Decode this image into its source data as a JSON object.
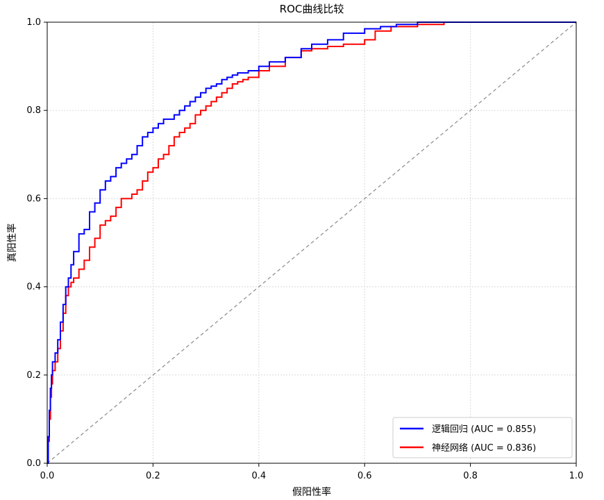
{
  "chart_data": {
    "type": "line",
    "title": "ROC曲线比较",
    "xlabel": "假阳性率",
    "ylabel": "真阳性率",
    "xlim": [
      0.0,
      1.0
    ],
    "ylim": [
      0.0,
      1.0
    ],
    "xticks": [
      "0.0",
      "0.2",
      "0.4",
      "0.6",
      "0.8",
      "1.0"
    ],
    "yticks": [
      "0.0",
      "0.2",
      "0.4",
      "0.6",
      "0.8",
      "1.0"
    ],
    "grid": true,
    "legend_position": "lower-right",
    "series": [
      {
        "name": "逻辑回归 (AUC = 0.855)",
        "color": "#0000ff",
        "x": [
          0.0,
          0.002,
          0.004,
          0.006,
          0.008,
          0.01,
          0.015,
          0.02,
          0.025,
          0.03,
          0.035,
          0.04,
          0.045,
          0.05,
          0.06,
          0.07,
          0.08,
          0.09,
          0.1,
          0.11,
          0.12,
          0.13,
          0.14,
          0.15,
          0.16,
          0.17,
          0.18,
          0.19,
          0.2,
          0.21,
          0.22,
          0.23,
          0.24,
          0.25,
          0.26,
          0.27,
          0.28,
          0.29,
          0.3,
          0.31,
          0.32,
          0.33,
          0.34,
          0.35,
          0.36,
          0.37,
          0.38,
          0.4,
          0.42,
          0.45,
          0.48,
          0.5,
          0.53,
          0.56,
          0.6,
          0.63,
          0.66,
          0.7,
          0.75,
          0.8,
          0.85,
          0.9,
          1.0
        ],
        "y": [
          0.0,
          0.06,
          0.12,
          0.17,
          0.2,
          0.23,
          0.25,
          0.28,
          0.32,
          0.36,
          0.4,
          0.42,
          0.45,
          0.48,
          0.52,
          0.53,
          0.57,
          0.59,
          0.62,
          0.64,
          0.65,
          0.67,
          0.68,
          0.69,
          0.7,
          0.72,
          0.74,
          0.75,
          0.76,
          0.77,
          0.78,
          0.78,
          0.79,
          0.8,
          0.81,
          0.82,
          0.83,
          0.84,
          0.85,
          0.855,
          0.86,
          0.87,
          0.875,
          0.88,
          0.885,
          0.885,
          0.89,
          0.9,
          0.91,
          0.92,
          0.94,
          0.95,
          0.96,
          0.975,
          0.985,
          0.99,
          0.995,
          1.0,
          1.0,
          1.0,
          1.0,
          1.0,
          1.0
        ]
      },
      {
        "name": "神经网络 (AUC = 0.836)",
        "color": "#ff0000",
        "x": [
          0.0,
          0.002,
          0.004,
          0.006,
          0.008,
          0.01,
          0.015,
          0.02,
          0.025,
          0.03,
          0.035,
          0.04,
          0.045,
          0.05,
          0.06,
          0.07,
          0.08,
          0.09,
          0.1,
          0.11,
          0.12,
          0.13,
          0.14,
          0.15,
          0.16,
          0.17,
          0.18,
          0.19,
          0.2,
          0.21,
          0.22,
          0.23,
          0.24,
          0.25,
          0.26,
          0.27,
          0.28,
          0.29,
          0.3,
          0.31,
          0.32,
          0.33,
          0.34,
          0.35,
          0.36,
          0.37,
          0.38,
          0.4,
          0.42,
          0.45,
          0.48,
          0.5,
          0.53,
          0.56,
          0.6,
          0.62,
          0.65,
          0.7,
          0.75,
          0.8,
          0.85,
          0.9,
          1.0
        ],
        "y": [
          0.0,
          0.05,
          0.1,
          0.15,
          0.18,
          0.21,
          0.23,
          0.26,
          0.3,
          0.34,
          0.38,
          0.4,
          0.41,
          0.42,
          0.44,
          0.46,
          0.49,
          0.51,
          0.54,
          0.55,
          0.56,
          0.58,
          0.6,
          0.6,
          0.61,
          0.62,
          0.64,
          0.66,
          0.67,
          0.69,
          0.7,
          0.72,
          0.74,
          0.75,
          0.76,
          0.77,
          0.79,
          0.8,
          0.81,
          0.82,
          0.83,
          0.84,
          0.85,
          0.86,
          0.865,
          0.87,
          0.875,
          0.89,
          0.9,
          0.92,
          0.935,
          0.94,
          0.945,
          0.95,
          0.96,
          0.98,
          0.99,
          0.995,
          1.0,
          1.0,
          1.0,
          1.0,
          1.0
        ]
      },
      {
        "name": "",
        "color": "#888888",
        "dashed": true,
        "x": [
          0.0,
          1.0
        ],
        "y": [
          0.0,
          1.0
        ]
      }
    ]
  }
}
